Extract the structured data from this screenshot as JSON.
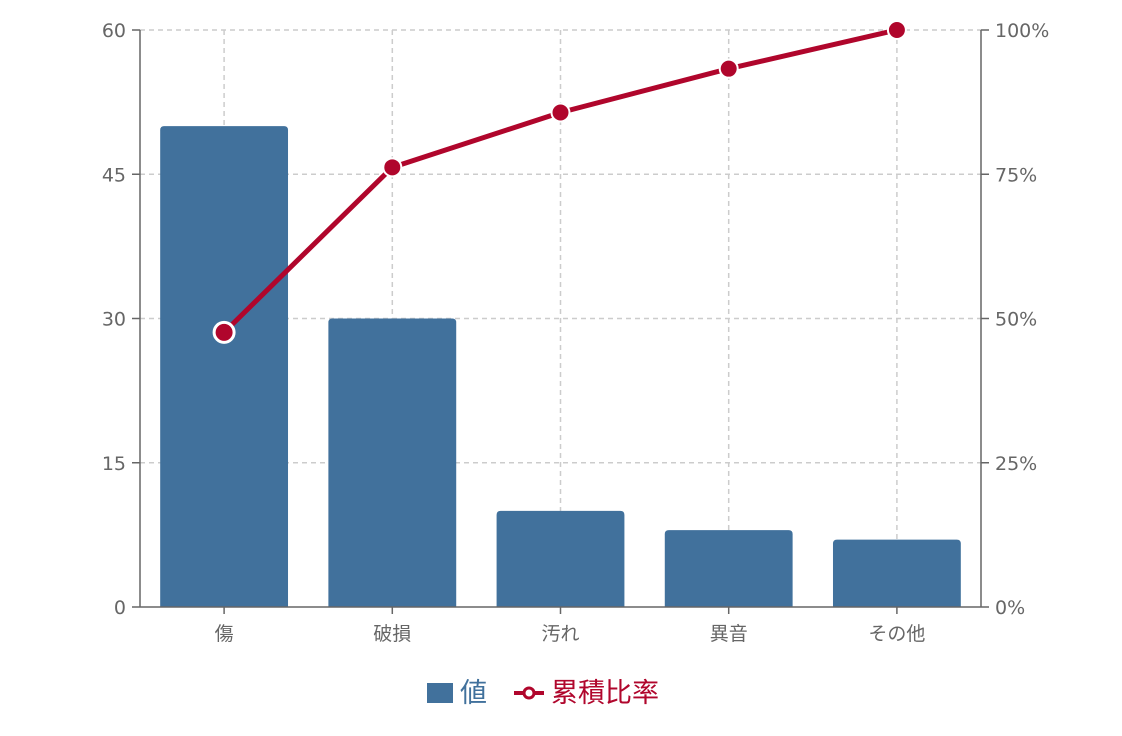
{
  "chart_data": {
    "type": "bar",
    "categories": [
      "傷",
      "破損",
      "汚れ",
      "異音",
      "その他"
    ],
    "series": [
      {
        "name": "値",
        "kind": "bar",
        "axis": "left",
        "values": [
          50,
          30,
          10,
          8,
          7
        ],
        "color": "#41719c"
      },
      {
        "name": "累積比率",
        "kind": "line",
        "axis": "right",
        "values": [
          47.6,
          76.2,
          85.7,
          93.3,
          100
        ],
        "color": "#b0062c"
      }
    ],
    "y_left": {
      "min": 0,
      "max": 60,
      "ticks": [
        0,
        15,
        30,
        45,
        60
      ],
      "tick_labels": [
        "0",
        "15",
        "30",
        "45",
        "60"
      ]
    },
    "y_right": {
      "min": 0,
      "max": 100,
      "ticks": [
        0,
        25,
        50,
        75,
        100
      ],
      "tick_labels": [
        "0%",
        "25%",
        "50%",
        "75%",
        "100%"
      ]
    },
    "grid": true,
    "legend_position": "bottom-center",
    "highlighted_point": {
      "series": "累積比率",
      "index": 0
    }
  }
}
